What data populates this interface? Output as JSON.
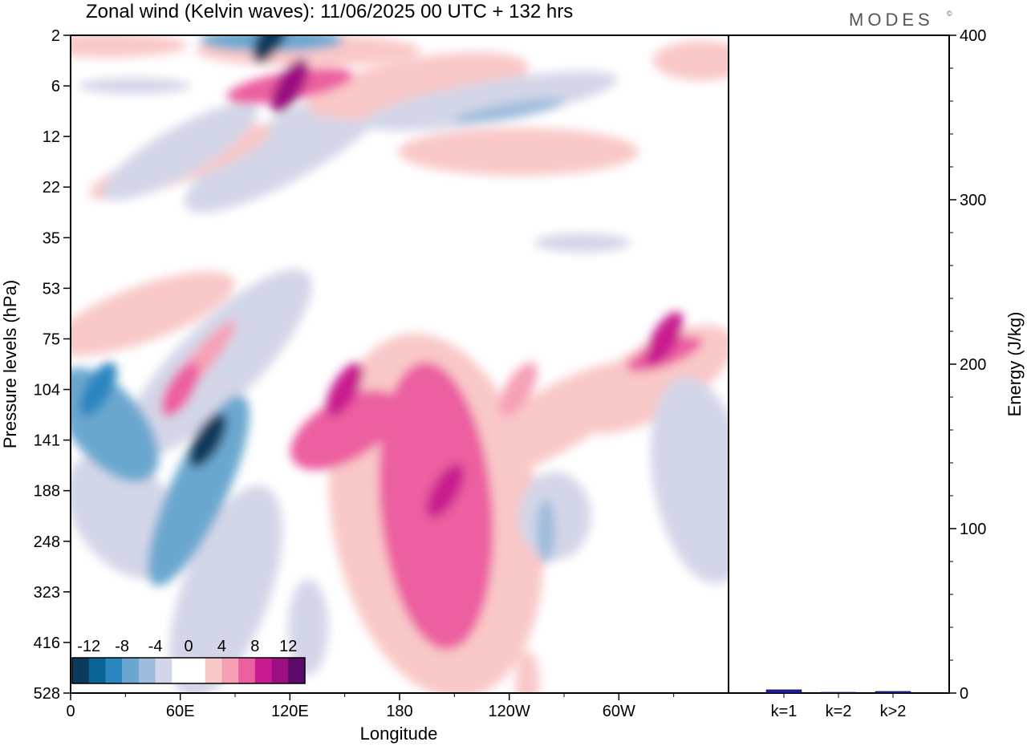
{
  "chart_data": [
    {
      "type": "heatmap",
      "title": "Zonal wind (Kelvin waves):  11/06/2025  00 UTC  + 132 hrs",
      "xlabel": "Longitude",
      "ylabel": "Pressure levels (hPa)",
      "x_ticks": [
        "0",
        "60E",
        "120E",
        "180",
        "120W",
        "60W"
      ],
      "x_tick_values": [
        0,
        60,
        120,
        180,
        240,
        300
      ],
      "xlim": [
        0,
        360
      ],
      "y_ticks": [
        "2",
        "6",
        "12",
        "22",
        "35",
        "53",
        "75",
        "104",
        "141",
        "188",
        "248",
        "323",
        "416",
        "528"
      ],
      "y_scale": "categorical pressure levels, 2 hPa at top",
      "colorbar": {
        "labels": [
          "-12",
          "-8",
          "-4",
          "0",
          "4",
          "8",
          "12"
        ],
        "label_values": [
          -12,
          -8,
          -4,
          0,
          4,
          8,
          12
        ],
        "levels": [
          -14,
          -12,
          -10,
          -8,
          -6,
          -4,
          -2,
          0,
          2,
          4,
          6,
          8,
          10,
          12,
          14
        ],
        "colors": [
          "#0c3a5c",
          "#0a6596",
          "#2a86c0",
          "#6aa7cf",
          "#9fbcdc",
          "#d3d6e8",
          "#ffffff",
          "#ffffff",
          "#f9c8c8",
          "#f6a0b6",
          "#ec5fa0",
          "#c91a8f",
          "#9b0f82",
          "#5b0a6b"
        ],
        "placement": "bottom-left inside plot"
      },
      "features": [
        {
          "lon": 75,
          "level": "141",
          "value": -14
        },
        {
          "lon": 15,
          "level": "104",
          "value": -10
        },
        {
          "lon": 110,
          "level": "2",
          "value": -14
        },
        {
          "lon": 120,
          "level": "6",
          "value": 10
        },
        {
          "lon": 205,
          "level": "188",
          "value": 8
        },
        {
          "lon": 150,
          "level": "104",
          "value": 8
        },
        {
          "lon": 325,
          "level": "75",
          "value": 8
        },
        {
          "lon": 60,
          "level": "104",
          "value": 6
        },
        {
          "lon": 245,
          "level": "104",
          "value": 4
        }
      ]
    },
    {
      "type": "bar",
      "ylabel": "Energy (J/kg)",
      "categories": [
        "k=1",
        "k=2",
        "k>2"
      ],
      "values": [
        2,
        0.5,
        1
      ],
      "ylim": [
        0,
        400
      ],
      "y_ticks": [
        0,
        100,
        200,
        300,
        400
      ],
      "bar_color": "#1c1c9c"
    }
  ],
  "brand": "MODES",
  "brand_mark": "©"
}
